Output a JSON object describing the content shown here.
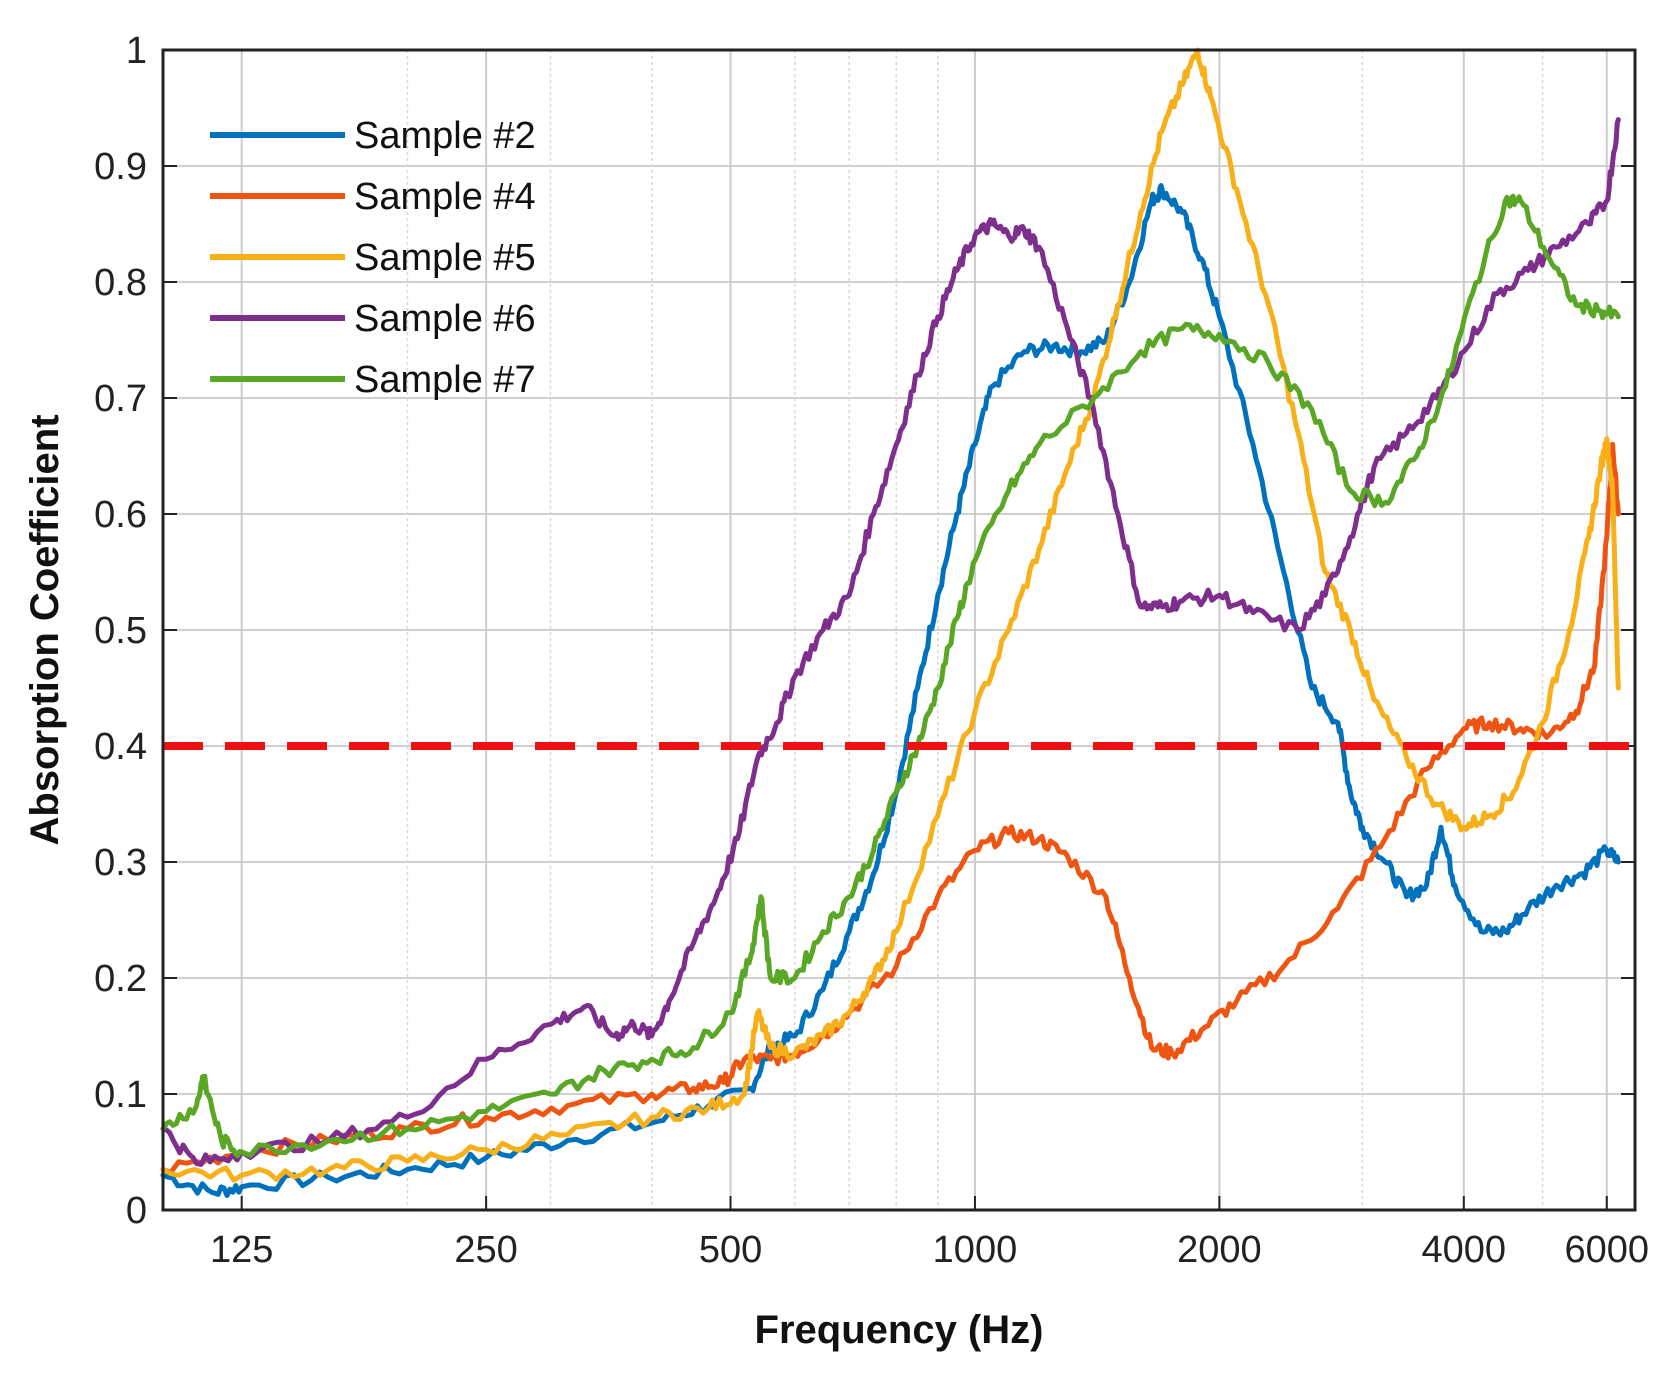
{
  "chart_data": {
    "type": "line",
    "x_scale": "log",
    "xlabel": "Frequency (Hz)",
    "ylabel": "Absorption Coefficient",
    "xlim": [
      100,
      6500
    ],
    "ylim": [
      0,
      1
    ],
    "grid": true,
    "legend_position": "top-left",
    "x_ticks": [
      {
        "value": 125,
        "label": "125"
      },
      {
        "value": 250,
        "label": "250"
      },
      {
        "value": 500,
        "label": "500"
      },
      {
        "value": 1000,
        "label": "1000"
      },
      {
        "value": 2000,
        "label": "2000"
      },
      {
        "value": 4000,
        "label": "4000"
      },
      {
        "value": 6000,
        "label": "6000"
      }
    ],
    "y_ticks": [
      {
        "value": 0,
        "label": "0"
      },
      {
        "value": 0.1,
        "label": "0.1"
      },
      {
        "value": 0.2,
        "label": "0.2"
      },
      {
        "value": 0.3,
        "label": "0.3"
      },
      {
        "value": 0.4,
        "label": "0.4"
      },
      {
        "value": 0.5,
        "label": "0.5"
      },
      {
        "value": 0.6,
        "label": "0.6"
      },
      {
        "value": 0.7,
        "label": "0.7"
      },
      {
        "value": 0.8,
        "label": "0.8"
      },
      {
        "value": 0.9,
        "label": "0.9"
      },
      {
        "value": 1,
        "label": "1"
      }
    ],
    "reference_line": {
      "y": 0.4,
      "color": "#ee1111",
      "style": "dashed"
    },
    "series": [
      {
        "name": "Sample #2",
        "color": "#0072bd",
        "points": [
          [
            100,
            0.03
          ],
          [
            115,
            0.015
          ],
          [
            125,
            0.02
          ],
          [
            160,
            0.028
          ],
          [
            200,
            0.035
          ],
          [
            250,
            0.045
          ],
          [
            315,
            0.06
          ],
          [
            400,
            0.075
          ],
          [
            470,
            0.09
          ],
          [
            530,
            0.105
          ],
          [
            560,
            0.14
          ],
          [
            600,
            0.15
          ],
          [
            650,
            0.19
          ],
          [
            700,
            0.24
          ],
          [
            750,
            0.29
          ],
          [
            800,
            0.36
          ],
          [
            850,
            0.45
          ],
          [
            900,
            0.53
          ],
          [
            950,
            0.6
          ],
          [
            1000,
            0.66
          ],
          [
            1050,
            0.71
          ],
          [
            1150,
            0.74
          ],
          [
            1250,
            0.745
          ],
          [
            1350,
            0.74
          ],
          [
            1450,
            0.75
          ],
          [
            1550,
            0.8
          ],
          [
            1650,
            0.87
          ],
          [
            1700,
            0.88
          ],
          [
            1800,
            0.86
          ],
          [
            1900,
            0.82
          ],
          [
            2000,
            0.77
          ],
          [
            2200,
            0.66
          ],
          [
            2400,
            0.55
          ],
          [
            2600,
            0.45
          ],
          [
            2800,
            0.42
          ],
          [
            2900,
            0.36
          ],
          [
            3000,
            0.33
          ],
          [
            3200,
            0.3
          ],
          [
            3400,
            0.27
          ],
          [
            3600,
            0.28
          ],
          [
            3750,
            0.33
          ],
          [
            3900,
            0.28
          ],
          [
            4200,
            0.24
          ],
          [
            4500,
            0.24
          ],
          [
            4800,
            0.26
          ],
          [
            5200,
            0.28
          ],
          [
            5600,
            0.29
          ],
          [
            6000,
            0.31
          ],
          [
            6200,
            0.3
          ]
        ]
      },
      {
        "name": "Sample #4",
        "color": "#ee5512",
        "points": [
          [
            100,
            0.035
          ],
          [
            125,
            0.05
          ],
          [
            160,
            0.06
          ],
          [
            200,
            0.07
          ],
          [
            250,
            0.08
          ],
          [
            315,
            0.09
          ],
          [
            400,
            0.1
          ],
          [
            450,
            0.105
          ],
          [
            490,
            0.11
          ],
          [
            520,
            0.13
          ],
          [
            560,
            0.13
          ],
          [
            600,
            0.135
          ],
          [
            650,
            0.15
          ],
          [
            700,
            0.17
          ],
          [
            800,
            0.21
          ],
          [
            900,
            0.27
          ],
          [
            1000,
            0.31
          ],
          [
            1100,
            0.325
          ],
          [
            1200,
            0.32
          ],
          [
            1300,
            0.305
          ],
          [
            1450,
            0.27
          ],
          [
            1550,
            0.2
          ],
          [
            1650,
            0.14
          ],
          [
            1750,
            0.135
          ],
          [
            1900,
            0.155
          ],
          [
            2100,
            0.18
          ],
          [
            2400,
            0.21
          ],
          [
            2800,
            0.26
          ],
          [
            3200,
            0.32
          ],
          [
            3600,
            0.38
          ],
          [
            4000,
            0.415
          ],
          [
            4300,
            0.42
          ],
          [
            4700,
            0.415
          ],
          [
            5100,
            0.41
          ],
          [
            5500,
            0.43
          ],
          [
            5800,
            0.47
          ],
          [
            6000,
            0.58
          ],
          [
            6100,
            0.66
          ],
          [
            6200,
            0.6
          ]
        ]
      },
      {
        "name": "Sample #5",
        "color": "#f7b019",
        "points": [
          [
            100,
            0.035
          ],
          [
            125,
            0.03
          ],
          [
            160,
            0.035
          ],
          [
            200,
            0.042
          ],
          [
            250,
            0.052
          ],
          [
            315,
            0.065
          ],
          [
            400,
            0.08
          ],
          [
            470,
            0.088
          ],
          [
            520,
            0.1
          ],
          [
            540,
            0.17
          ],
          [
            560,
            0.14
          ],
          [
            600,
            0.135
          ],
          [
            650,
            0.15
          ],
          [
            700,
            0.17
          ],
          [
            750,
            0.2
          ],
          [
            800,
            0.24
          ],
          [
            900,
            0.34
          ],
          [
            1000,
            0.43
          ],
          [
            1100,
            0.5
          ],
          [
            1200,
            0.57
          ],
          [
            1300,
            0.64
          ],
          [
            1400,
            0.7
          ],
          [
            1500,
            0.78
          ],
          [
            1600,
            0.86
          ],
          [
            1700,
            0.93
          ],
          [
            1800,
            0.97
          ],
          [
            1880,
            1.0
          ],
          [
            1950,
            0.96
          ],
          [
            2100,
            0.88
          ],
          [
            2300,
            0.78
          ],
          [
            2500,
            0.67
          ],
          [
            2700,
            0.55
          ],
          [
            2900,
            0.5
          ],
          [
            3100,
            0.44
          ],
          [
            3400,
            0.39
          ],
          [
            3700,
            0.35
          ],
          [
            4000,
            0.33
          ],
          [
            4300,
            0.34
          ],
          [
            4600,
            0.36
          ],
          [
            5000,
            0.42
          ],
          [
            5400,
            0.5
          ],
          [
            5700,
            0.58
          ],
          [
            5900,
            0.64
          ],
          [
            6000,
            0.665
          ],
          [
            6100,
            0.62
          ],
          [
            6200,
            0.45
          ]
        ]
      },
      {
        "name": "Sample #6",
        "color": "#7e2f8e",
        "points": [
          [
            100,
            0.07
          ],
          [
            110,
            0.04
          ],
          [
            125,
            0.05
          ],
          [
            160,
            0.06
          ],
          [
            200,
            0.08
          ],
          [
            250,
            0.13
          ],
          [
            300,
            0.16
          ],
          [
            330,
            0.175
          ],
          [
            360,
            0.15
          ],
          [
            380,
            0.16
          ],
          [
            400,
            0.15
          ],
          [
            420,
            0.18
          ],
          [
            450,
            0.23
          ],
          [
            480,
            0.27
          ],
          [
            510,
            0.32
          ],
          [
            540,
            0.39
          ],
          [
            570,
            0.42
          ],
          [
            600,
            0.46
          ],
          [
            650,
            0.5
          ],
          [
            700,
            0.53
          ],
          [
            750,
            0.6
          ],
          [
            800,
            0.66
          ],
          [
            850,
            0.72
          ],
          [
            900,
            0.77
          ],
          [
            950,
            0.81
          ],
          [
            1000,
            0.84
          ],
          [
            1050,
            0.85
          ],
          [
            1100,
            0.84
          ],
          [
            1150,
            0.845
          ],
          [
            1200,
            0.83
          ],
          [
            1300,
            0.76
          ],
          [
            1400,
            0.69
          ],
          [
            1500,
            0.6
          ],
          [
            1600,
            0.52
          ],
          [
            1700,
            0.52
          ],
          [
            1800,
            0.525
          ],
          [
            2000,
            0.53
          ],
          [
            2200,
            0.515
          ],
          [
            2500,
            0.5
          ],
          [
            2700,
            0.53
          ],
          [
            2900,
            0.58
          ],
          [
            3100,
            0.64
          ],
          [
            3400,
            0.67
          ],
          [
            3700,
            0.7
          ],
          [
            4000,
            0.74
          ],
          [
            4400,
            0.79
          ],
          [
            4800,
            0.81
          ],
          [
            5200,
            0.83
          ],
          [
            5700,
            0.85
          ],
          [
            6000,
            0.87
          ],
          [
            6200,
            0.94
          ]
        ]
      },
      {
        "name": "Sample #7",
        "color": "#5aa625",
        "points": [
          [
            100,
            0.07
          ],
          [
            110,
            0.09
          ],
          [
            112,
            0.115
          ],
          [
            118,
            0.06
          ],
          [
            125,
            0.05
          ],
          [
            160,
            0.06
          ],
          [
            200,
            0.07
          ],
          [
            250,
            0.085
          ],
          [
            300,
            0.1
          ],
          [
            350,
            0.12
          ],
          [
            400,
            0.13
          ],
          [
            450,
            0.14
          ],
          [
            500,
            0.17
          ],
          [
            530,
            0.22
          ],
          [
            545,
            0.27
          ],
          [
            560,
            0.2
          ],
          [
            600,
            0.2
          ],
          [
            650,
            0.24
          ],
          [
            700,
            0.27
          ],
          [
            750,
            0.31
          ],
          [
            800,
            0.36
          ],
          [
            850,
            0.4
          ],
          [
            900,
            0.45
          ],
          [
            950,
            0.51
          ],
          [
            1000,
            0.56
          ],
          [
            1100,
            0.62
          ],
          [
            1200,
            0.66
          ],
          [
            1400,
            0.7
          ],
          [
            1600,
            0.74
          ],
          [
            1800,
            0.76
          ],
          [
            2000,
            0.755
          ],
          [
            2300,
            0.73
          ],
          [
            2600,
            0.69
          ],
          [
            2900,
            0.62
          ],
          [
            3200,
            0.61
          ],
          [
            3500,
            0.65
          ],
          [
            3800,
            0.71
          ],
          [
            4100,
            0.79
          ],
          [
            4500,
            0.87
          ],
          [
            4700,
            0.87
          ],
          [
            5100,
            0.82
          ],
          [
            5500,
            0.78
          ],
          [
            5900,
            0.775
          ],
          [
            6200,
            0.77
          ]
        ]
      }
    ]
  }
}
